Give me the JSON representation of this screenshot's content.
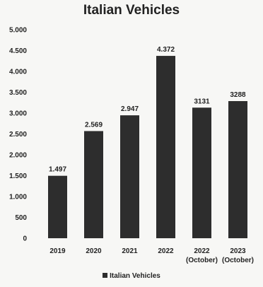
{
  "chart_data": {
    "type": "bar",
    "title": "Italian Vehicles",
    "categories": [
      [
        "2019"
      ],
      [
        "2020"
      ],
      [
        "2021"
      ],
      [
        "2022"
      ],
      [
        "2022",
        "(October)"
      ],
      [
        "2023",
        "(October)"
      ]
    ],
    "series": [
      {
        "name": "Italian Vehicles",
        "values": [
          1497,
          2569,
          2947,
          4372,
          3131,
          3288
        ],
        "value_labels": [
          "1.497",
          "2.569",
          "2.947",
          "4.372",
          "3131",
          "3288"
        ],
        "color": "#2d2d2d"
      }
    ],
    "yticks": [
      0,
      500,
      1000,
      1500,
      2000,
      2500,
      3000,
      3500,
      4000,
      4500,
      5000
    ],
    "ytick_labels": [
      "0",
      "500",
      "1.000",
      "1.500",
      "2.000",
      "2.500",
      "3.000",
      "3.500",
      "4.000",
      "4.500",
      "5.000"
    ],
    "ylim": [
      0,
      5000
    ],
    "grid": false,
    "legend_position": "bottom",
    "xlabel": "",
    "ylabel": ""
  }
}
